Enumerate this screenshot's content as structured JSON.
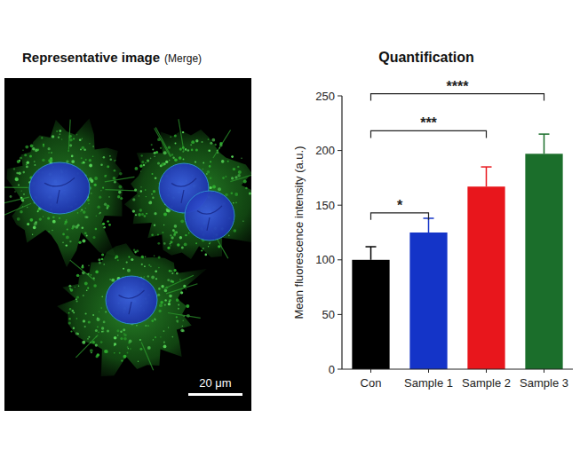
{
  "image_panel": {
    "title": "Representative image",
    "subtitle": "(Merge)",
    "scale_bar": "20 μm"
  },
  "chart_data": {
    "type": "bar",
    "title": "Quantification",
    "y_label": "Mean fluorescence intensity (a.u.)",
    "categories": [
      "Con",
      "Sample 1",
      "Sample 2",
      "Sample 3"
    ],
    "values": [
      100,
      125,
      167,
      197
    ],
    "errors": [
      12,
      13,
      18,
      18
    ],
    "colors": [
      "#000000",
      "#1434c8",
      "#e8161c",
      "#1b6e2b"
    ],
    "ylim": [
      0,
      250
    ],
    "yticks": [
      0,
      50,
      100,
      150,
      200,
      250
    ],
    "grid": false,
    "annotations": [
      {
        "from": "Con",
        "to": "Sample 1",
        "label": "*",
        "y": 143
      },
      {
        "from": "Con",
        "to": "Sample 2",
        "label": "***",
        "y": 218
      },
      {
        "from": "Con",
        "to": "Sample 3",
        "label": "****",
        "y": 252
      }
    ]
  }
}
